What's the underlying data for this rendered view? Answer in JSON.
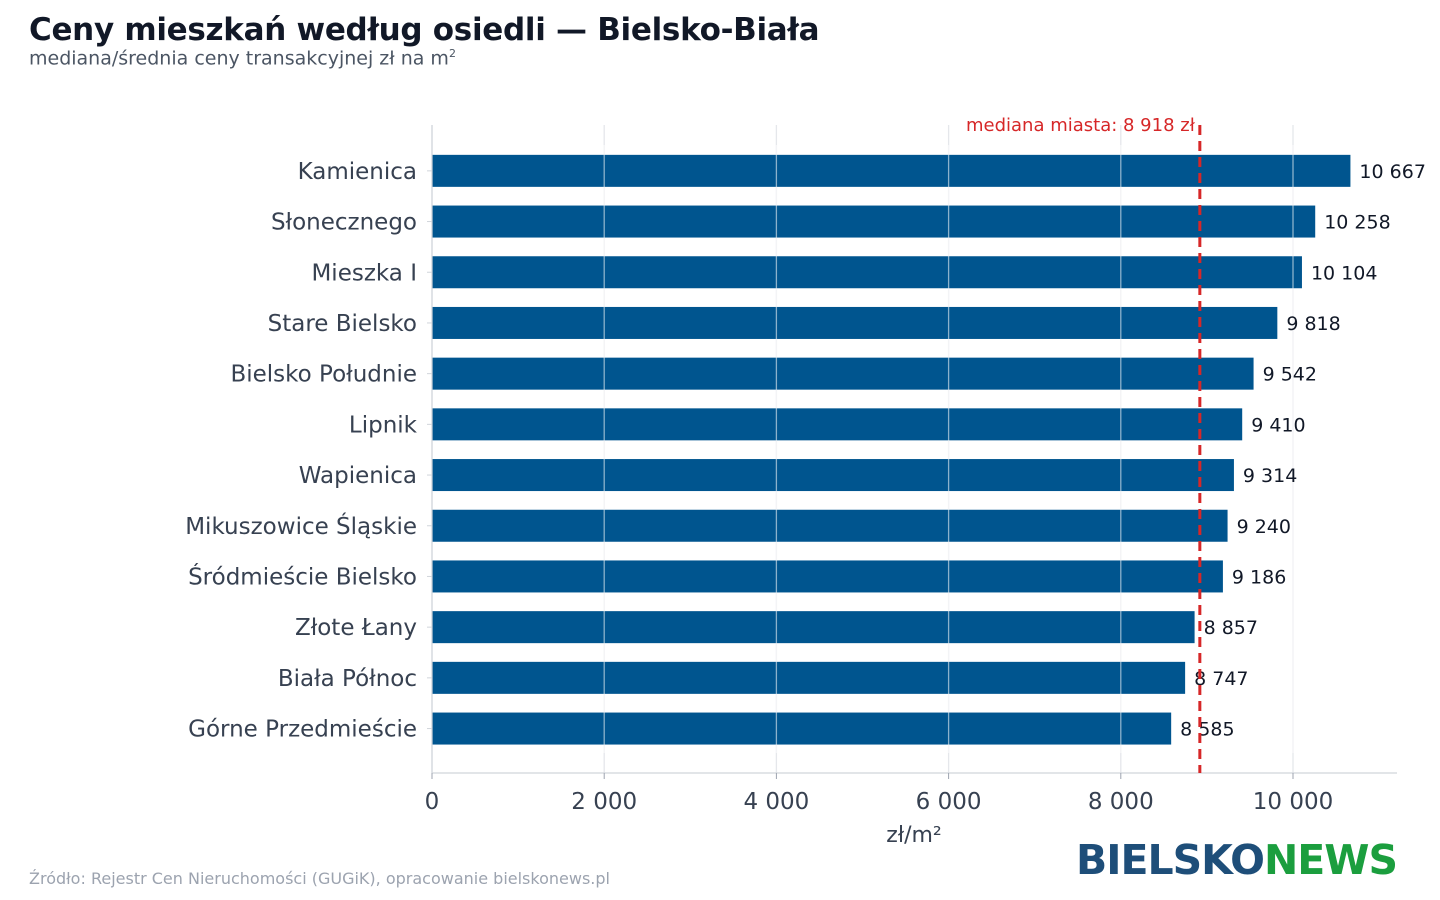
{
  "title": "Ceny mieszkań według osiedli — Bielsko-Biała",
  "subtitle": "mediana/średnia ceny transakcyjnej zł na m",
  "subtitle_sup": "2",
  "source": "Źródło: Rejestr Cen Nieruchomości (GUGiK), opracowanie bielskonews.pl",
  "logo": {
    "part1": "BIELSKO",
    "part2": "NEWS"
  },
  "colors": {
    "bar": "#00558f",
    "median": "#d62728",
    "grid": "#e5e7eb",
    "text": "#374151"
  },
  "chart_data": {
    "type": "bar",
    "orientation": "horizontal",
    "categories": [
      "Kamienica",
      "Słonecznego",
      "Mieszka I",
      "Stare Bielsko",
      "Bielsko Południe",
      "Lipnik",
      "Wapienica",
      "Mikuszowice Śląskie",
      "Śródmieście Bielsko",
      "Złote Łany",
      "Biała Północ",
      "Górne Przedmieście"
    ],
    "values": [
      10667,
      10258,
      10104,
      9818,
      9542,
      9410,
      9314,
      9240,
      9186,
      8857,
      8747,
      8585
    ],
    "value_labels": [
      "10 667",
      "10 258",
      "10 104",
      "9 818",
      "9 542",
      "9 410",
      "9 314",
      "9 240",
      "9 186",
      "8 857",
      "8 747",
      "8 585"
    ],
    "xlabel": "zł/m²",
    "xticks": [
      0,
      2000,
      4000,
      6000,
      8000,
      10000
    ],
    "xtick_labels": [
      "0",
      "2 000",
      "4 000",
      "6 000",
      "8 000",
      "10 000"
    ],
    "xlim": [
      0,
      11200
    ],
    "grid": true,
    "reference_line": {
      "value": 8918,
      "label": "mediana miasta: 8 918 zł"
    }
  }
}
